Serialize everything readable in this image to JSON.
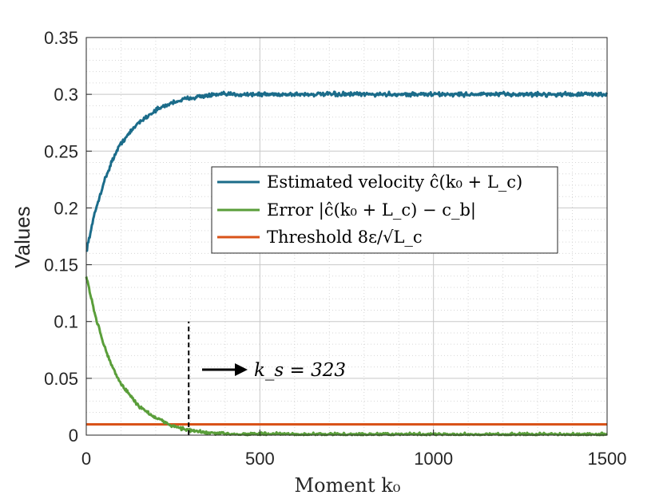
{
  "chart_data": {
    "type": "line",
    "title": "",
    "xlabel": "Moment k₀",
    "ylabel": "Values",
    "xlim": [
      0,
      1500
    ],
    "ylim": [
      0,
      0.35
    ],
    "xticks": [
      "0",
      "500",
      "1000",
      "1500"
    ],
    "yticks": [
      "0",
      "0.05",
      "0.1",
      "0.15",
      "0.2",
      "0.25",
      "0.3",
      "0.35"
    ],
    "grid": true,
    "minor_grid": true,
    "legend_position": "center-right",
    "series": [
      {
        "name": "Estimated velocity ĉ(k₀ + L_c)",
        "color": "#1b6c8a",
        "x": [
          0,
          25,
          50,
          75,
          100,
          150,
          200,
          250,
          300,
          350,
          400,
          500,
          600,
          800,
          1000,
          1200,
          1400,
          1500
        ],
        "values": [
          0.162,
          0.196,
          0.222,
          0.242,
          0.257,
          0.275,
          0.286,
          0.293,
          0.297,
          0.299,
          0.3,
          0.3,
          0.3,
          0.3,
          0.3,
          0.3,
          0.3,
          0.3
        ]
      },
      {
        "name": "Error |ĉ(k₀ + L_c) − c_b|",
        "color": "#5a9e3a",
        "x": [
          0,
          25,
          50,
          75,
          100,
          150,
          200,
          250,
          300,
          350,
          400,
          500,
          600,
          800,
          1000,
          1200,
          1400,
          1500
        ],
        "values": [
          0.14,
          0.106,
          0.08,
          0.06,
          0.045,
          0.026,
          0.015,
          0.008,
          0.004,
          0.002,
          0.001,
          0.001,
          0.0005,
          0.0005,
          0.0005,
          0.0005,
          0.0005,
          0.0005
        ]
      },
      {
        "name": "Threshold 8ε/√L_c",
        "color": "#d95319",
        "x": [
          0,
          1500
        ],
        "values": [
          0.0095,
          0.0095
        ]
      }
    ],
    "annotations": [
      {
        "type": "vline",
        "x": 295,
        "y_from": 0,
        "y_to": 0.1,
        "style": "dashed"
      },
      {
        "type": "arrow",
        "text": "k_s = 323"
      }
    ]
  },
  "legend": {
    "entries": [
      {
        "label": "Estimated velocity ĉ(k₀ + L_c)"
      },
      {
        "label": "Error |ĉ(k₀ + L_c) − c_b|"
      },
      {
        "label": "Threshold 8ε/√L_c"
      }
    ]
  },
  "annotation_text": "k_s = 323"
}
